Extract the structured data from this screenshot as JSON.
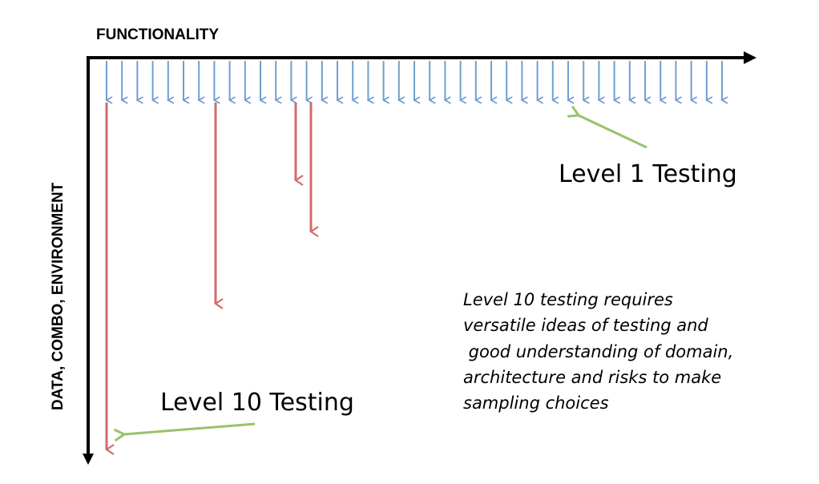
{
  "axes": {
    "x_label": "FUNCTIONALITY",
    "y_label": "DATA, COMBO, ENVIRONMENT"
  },
  "level1": {
    "label": "Level 1 Testing"
  },
  "level10": {
    "label": "Level 10 Testing"
  },
  "note": {
    "lines": [
      "Level 10 testing requires",
      "versatile ideas of testing and",
      " good understanding of domain,",
      "architecture and risks to make",
      "sampling choices"
    ]
  },
  "colors": {
    "axis": "#000000",
    "shallow_arrow": "#6f9fcf",
    "deep_arrow": "#d46a6a",
    "pointer_arrow": "#99c26b"
  }
}
